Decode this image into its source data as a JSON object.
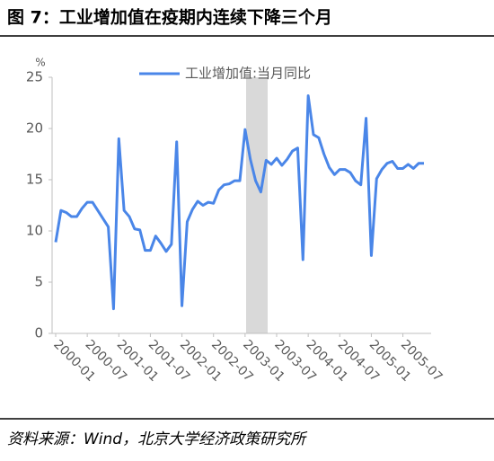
{
  "title": "图 7：工业增加值在疫期内连续下降三个月",
  "source": "资料来源：Wind，北京大学经济政策研究所",
  "chart_data": {
    "type": "line",
    "y_unit": "%",
    "categories": [
      "2000-01",
      null,
      null,
      null,
      null,
      null,
      "2000-07",
      null,
      null,
      null,
      null,
      null,
      "2001-01",
      null,
      null,
      null,
      null,
      null,
      "2001-07",
      null,
      null,
      null,
      null,
      null,
      "2002-01",
      null,
      null,
      null,
      null,
      null,
      "2002-07",
      null,
      null,
      null,
      null,
      null,
      "2003-01",
      null,
      null,
      null,
      null,
      null,
      "2003-07",
      null,
      null,
      null,
      null,
      null,
      "2004-01",
      null,
      null,
      null,
      null,
      null,
      "2004-07",
      null,
      null,
      null,
      null,
      null,
      "2005-01",
      null,
      null,
      null,
      null,
      null,
      "2005-07",
      null,
      null,
      null,
      null
    ],
    "series": [
      {
        "name": "工业增加值:当月同比",
        "color": "#4a86e8",
        "values": [
          8.9,
          12.0,
          11.8,
          11.4,
          11.4,
          12.2,
          12.8,
          12.8,
          12.0,
          11.2,
          10.4,
          2.4,
          19.0,
          12.0,
          11.4,
          10.2,
          10.1,
          8.1,
          8.1,
          9.5,
          8.8,
          8.0,
          8.7,
          18.7,
          2.7,
          10.9,
          12.1,
          12.9,
          12.5,
          12.8,
          12.7,
          14.0,
          14.5,
          14.6,
          14.9,
          14.9,
          19.9,
          17.0,
          14.9,
          13.8,
          16.9,
          16.5,
          17.1,
          16.4,
          17.0,
          17.8,
          18.1,
          7.2,
          23.2,
          19.4,
          19.1,
          17.5,
          16.2,
          15.5,
          16.0,
          16.0,
          15.7,
          14.9,
          14.5,
          21.0,
          7.6,
          15.1,
          16.0,
          16.6,
          16.8,
          16.1,
          16.1,
          16.5,
          16.1,
          16.6,
          16.6
        ]
      }
    ],
    "ylim": [
      0,
      25
    ],
    "yticks": [
      0,
      5,
      10,
      15,
      20,
      25
    ]
  }
}
